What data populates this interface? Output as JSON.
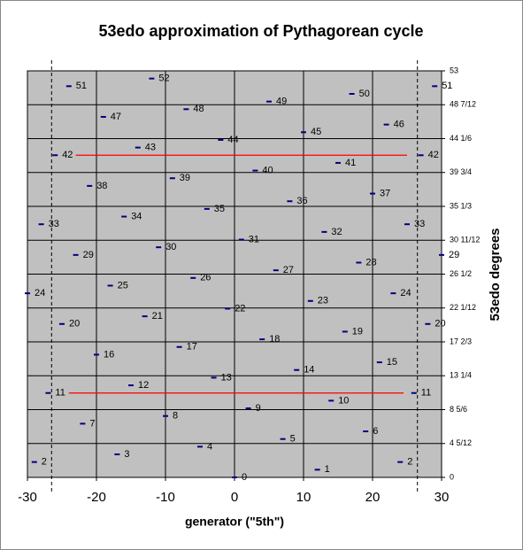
{
  "chart_data": {
    "type": "scatter",
    "title": "53edo approximation of Pythagorean cycle",
    "xlabel": "generator (\"5th\")",
    "ylabel": "53edo degrees",
    "x": [
      -30,
      -29,
      -28,
      -27,
      -26,
      -25,
      -24,
      -23,
      -22,
      -21,
      -20,
      -19,
      -18,
      -17,
      -16,
      -15,
      -14,
      -13,
      -12,
      -11,
      -10,
      -9,
      -8,
      -7,
      -6,
      -5,
      -4,
      -3,
      -2,
      -1,
      0,
      1,
      2,
      3,
      4,
      5,
      6,
      7,
      8,
      9,
      10,
      11,
      12,
      13,
      14,
      15,
      16,
      17,
      18,
      19,
      20,
      21,
      22,
      23,
      24,
      25,
      26,
      27,
      28,
      29,
      30
    ],
    "values": [
      24,
      2,
      33,
      11,
      42,
      20,
      51,
      29,
      7,
      38,
      16,
      47,
      25,
      3,
      34,
      12,
      43,
      21,
      52,
      30,
      8,
      39,
      17,
      48,
      26,
      4,
      35,
      13,
      44,
      22,
      0,
      31,
      9,
      40,
      18,
      49,
      27,
      5,
      36,
      14,
      45,
      23,
      1,
      32,
      10,
      41,
      19,
      50,
      28,
      6,
      37,
      15,
      46,
      24,
      2,
      33,
      11,
      42,
      20,
      51,
      29
    ],
    "color": "#000080",
    "xlim": [
      -30,
      30
    ],
    "xticks": [
      -30,
      -20,
      -10,
      0,
      10,
      20,
      30
    ],
    "ylim": [
      0,
      53
    ],
    "yticks": [
      0,
      {
        "value": 4.4167,
        "label": "4 5/12"
      },
      {
        "value": 8.8333,
        "label": "8 5/6"
      },
      {
        "value": 13.25,
        "label": "13 1/4"
      },
      {
        "value": 17.6667,
        "label": "17 2/3"
      },
      {
        "value": 22.0833,
        "label": "22 1/12"
      },
      {
        "value": 26.5,
        "label": "26 1/2"
      },
      {
        "value": 30.9167,
        "label": "30 11/12"
      },
      {
        "value": 35.3333,
        "label": "35 1/3"
      },
      {
        "value": 39.75,
        "label": "39 3/4"
      },
      {
        "value": 44.1667,
        "label": "44 1/6"
      },
      {
        "value": 48.5833,
        "label": "48 7/12"
      },
      53
    ],
    "grid": true,
    "plot_background": "#c0c0c0",
    "vlines": [
      -26.5,
      26.5
    ],
    "hlines": [
      {
        "y": 42,
        "x": [
          -23,
          25
        ],
        "color": "#ff0000"
      },
      {
        "y": 11,
        "x": [
          -24,
          24.5
        ],
        "color": "#ff0000"
      }
    ]
  }
}
